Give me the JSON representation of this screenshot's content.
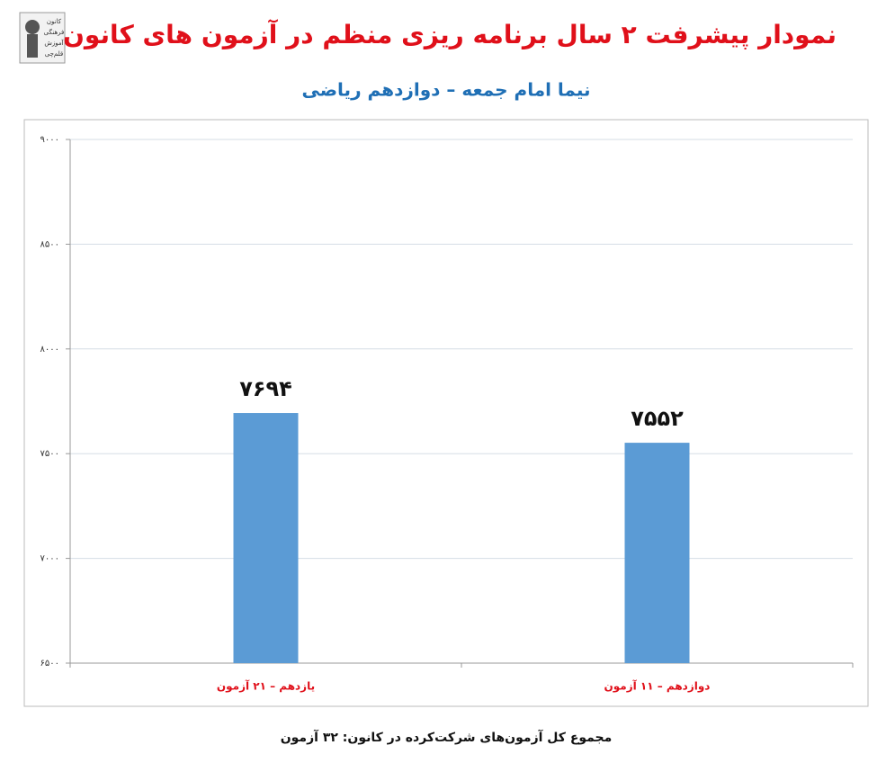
{
  "logo": {
    "lines": [
      "کانون",
      "فرهنگی",
      "آموزش",
      "قلم‌چی"
    ]
  },
  "chart_data": {
    "type": "bar",
    "title": "نمودار پیشرفت ۲ سال برنامه ریزی منظم در آزمون های کانون",
    "subtitle": "نیما امام جمعه – دوازدهم ریاضی",
    "categories": [
      "یازدهم – ۲۱ آزمون",
      "دوازدهم – ۱۱ آزمون"
    ],
    "values": [
      7694,
      7552
    ],
    "value_labels": [
      "۷۶۹۴",
      "۷۵۵۲"
    ],
    "color": "#5b9bd5",
    "ylim": [
      6500,
      9000
    ],
    "yticks": [
      {
        "value": 6500,
        "label": "۶۵۰۰"
      },
      {
        "value": 7000,
        "label": "۷۰۰۰"
      },
      {
        "value": 7500,
        "label": "۷۵۰۰"
      },
      {
        "value": 8000,
        "label": "۸۰۰۰"
      },
      {
        "value": 8500,
        "label": "۸۵۰۰"
      },
      {
        "value": 9000,
        "label": "۹۰۰۰"
      }
    ],
    "grid": true,
    "annotation": "مجموع کل آزمون‌های شرکت‌کرده در کانون: ۳۲ آزمون"
  }
}
